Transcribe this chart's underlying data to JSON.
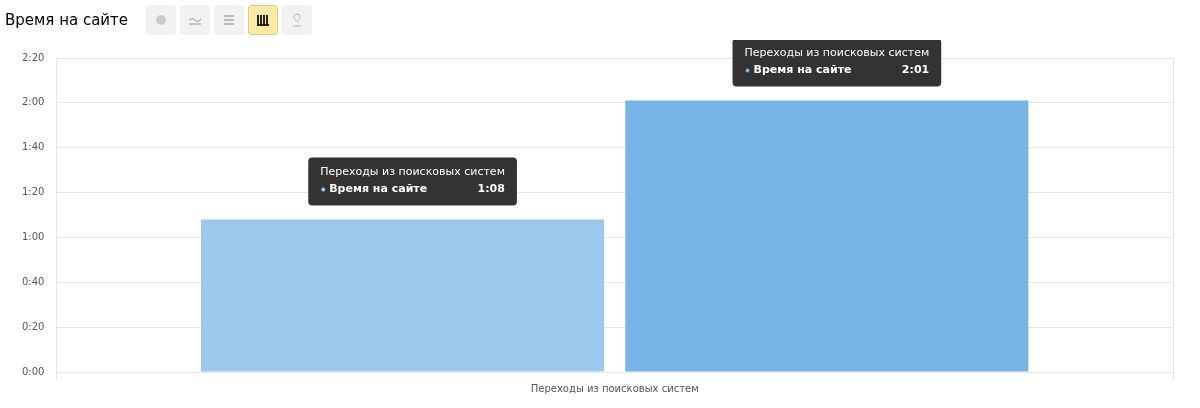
{
  "chart_data": {
    "type": "bar",
    "title": "Время на сайте",
    "categories": [
      "Переходы из поисковых систем"
    ],
    "series": [
      {
        "name": "Время на сайте",
        "color": "#9cc8ee",
        "values": [
          68
        ],
        "value_labels": [
          "1:08"
        ]
      },
      {
        "name": "Время на сайте",
        "color": "#78b4e6",
        "values": [
          121
        ],
        "value_labels": [
          "2:01"
        ]
      }
    ],
    "annotations": [
      "Переходы из поисковых систем",
      "Переходы из поисковых систем"
    ],
    "ylim": [
      0,
      140
    ],
    "yticks": [
      {
        "value": 0,
        "label": "0:00"
      },
      {
        "value": 20,
        "label": "0:20"
      },
      {
        "value": 40,
        "label": "0:40"
      },
      {
        "value": 60,
        "label": "1:00"
      },
      {
        "value": 80,
        "label": "1:20"
      },
      {
        "value": 100,
        "label": "1:40"
      },
      {
        "value": 120,
        "label": "2:00"
      },
      {
        "value": 140,
        "label": "2:20"
      }
    ],
    "grid": true,
    "legend": false
  }
}
